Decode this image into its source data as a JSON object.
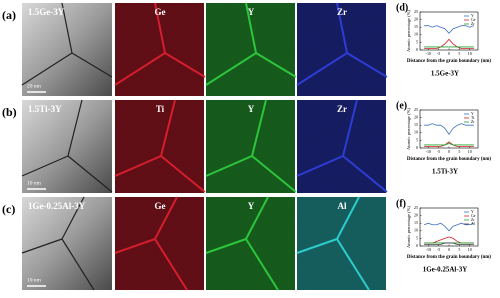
{
  "panels": [
    {
      "label": "(a)",
      "sample": "1.5Ge-3Y",
      "scale_bar": "20 nm",
      "maps": [
        {
          "element": "Ge",
          "color": "#e02030"
        },
        {
          "element": "Y",
          "color": "#30d040"
        },
        {
          "element": "Zr",
          "color": "#3040e0"
        }
      ]
    },
    {
      "label": "(b)",
      "sample": "1.5Ti-3Y",
      "scale_bar": "10 nm",
      "maps": [
        {
          "element": "Ti",
          "color": "#e02030"
        },
        {
          "element": "Y",
          "color": "#30d040"
        },
        {
          "element": "Zr",
          "color": "#3040e0"
        }
      ]
    },
    {
      "label": "(c)",
      "sample": "1Ge-0.25Al-3Y",
      "scale_bar": "10 nm",
      "maps": [
        {
          "element": "Ge",
          "color": "#e02030"
        },
        {
          "element": "Y",
          "color": "#30d040"
        },
        {
          "element": "Al",
          "color": "#30d8d8"
        }
      ]
    }
  ],
  "chart_data": [
    {
      "type": "line",
      "label": "(d)",
      "caption": "1.5Ge-3Y",
      "ylabel": "Atomic percentage (%)",
      "xlabel": "Distance from the grain boundary (nm)",
      "x": [
        -12,
        -10,
        -8,
        -6,
        -4,
        -2,
        0,
        2,
        4,
        6,
        8,
        10,
        12
      ],
      "xlim": [
        -14,
        14
      ],
      "xticks": [
        -10,
        -5,
        0,
        5,
        10
      ],
      "ylim": [
        0,
        25
      ],
      "yticks": [
        0,
        5,
        10,
        15,
        20,
        25
      ],
      "series": [
        {
          "name": "Y",
          "color": "#3a6fc4",
          "values": [
            16,
            16,
            15,
            16,
            15,
            14,
            11,
            14,
            15,
            16,
            16,
            15,
            16
          ]
        },
        {
          "name": "Ge",
          "color": "#d42020",
          "values": [
            1,
            1,
            1,
            1,
            2,
            4,
            7,
            4,
            2,
            1,
            1,
            1,
            1
          ]
        },
        {
          "name": "Zr",
          "color": "#20a030",
          "values": [
            2,
            2,
            2,
            2,
            2,
            2,
            2,
            2,
            2,
            2,
            2,
            2,
            2
          ]
        }
      ]
    },
    {
      "type": "line",
      "label": "(e)",
      "caption": "1.5Ti-3Y",
      "ylabel": "Atomic percentage (%)",
      "xlabel": "Distance from the grain boundary (nm)",
      "x": [
        -12,
        -10,
        -8,
        -6,
        -4,
        -2,
        0,
        2,
        4,
        6,
        8,
        10,
        12
      ],
      "xlim": [
        -14,
        14
      ],
      "xticks": [
        -10,
        -5,
        0,
        5,
        10
      ],
      "ylim": [
        0,
        25
      ],
      "yticks": [
        0,
        5,
        10,
        15,
        20,
        25
      ],
      "series": [
        {
          "name": "Y",
          "color": "#3a6fc4",
          "values": [
            15,
            15,
            16,
            15,
            15,
            13,
            9,
            13,
            15,
            16,
            15,
            15,
            15
          ]
        },
        {
          "name": "Ti",
          "color": "#d42020",
          "values": [
            1,
            1,
            1,
            1,
            1,
            2,
            4,
            2,
            1,
            1,
            1,
            1,
            1
          ]
        },
        {
          "name": "Zr",
          "color": "#20a030",
          "values": [
            2,
            2,
            2,
            2,
            2,
            2,
            3,
            2,
            2,
            2,
            2,
            2,
            2
          ]
        }
      ]
    },
    {
      "type": "line",
      "label": "(f)",
      "caption": "1Ge-0.25Al-3Y",
      "ylabel": "Atomic percentage (%)",
      "xlabel": "Distance from the grain boundary (nm)",
      "x": [
        -12,
        -10,
        -8,
        -6,
        -4,
        -2,
        0,
        2,
        4,
        6,
        8,
        10,
        12
      ],
      "xlim": [
        -14,
        14
      ],
      "xticks": [
        -10,
        -5,
        0,
        5,
        10
      ],
      "ylim": [
        0,
        25
      ],
      "yticks": [
        0,
        5,
        10,
        15,
        20,
        25
      ],
      "series": [
        {
          "name": "Y",
          "color": "#3a6fc4",
          "values": [
            14,
            15,
            14,
            14,
            15,
            13,
            10,
            13,
            14,
            15,
            14,
            14,
            15
          ]
        },
        {
          "name": "Ge",
          "color": "#d42020",
          "values": [
            2,
            2,
            2,
            3,
            4,
            5,
            6,
            5,
            3,
            2,
            2,
            2,
            2
          ]
        },
        {
          "name": "Zr",
          "color": "#20a030",
          "values": [
            2,
            2,
            2,
            2,
            2,
            2,
            2,
            2,
            2,
            2,
            2,
            2,
            2
          ]
        },
        {
          "name": "Al",
          "color": "#404040",
          "values": [
            1,
            1,
            1,
            1,
            1,
            2,
            2,
            2,
            1,
            1,
            1,
            1,
            1
          ]
        }
      ]
    }
  ]
}
